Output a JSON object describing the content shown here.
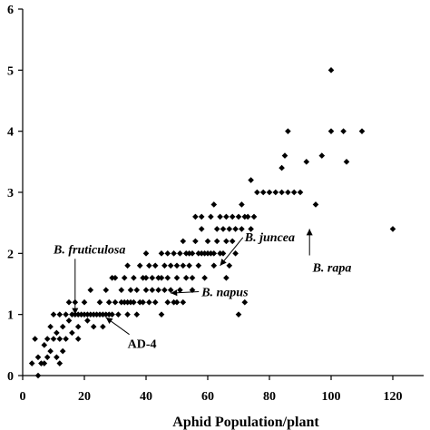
{
  "chart_data": {
    "type": "scatter",
    "title": "",
    "xlabel": "Aphid Population/plant",
    "ylabel": "",
    "xlim": [
      0,
      130
    ],
    "ylim": [
      0,
      6
    ],
    "grid": false,
    "x_ticks": [
      0,
      20,
      40,
      60,
      80,
      100,
      120
    ],
    "y_ticks": [
      0,
      1,
      2,
      3,
      4,
      5,
      6
    ],
    "x_tick_labels": [
      "0",
      "20",
      "40",
      "60",
      "80",
      "100",
      "120"
    ],
    "y_tick_labels": [
      "0",
      "1",
      "2",
      "3",
      "4",
      "5",
      "6"
    ],
    "points": [
      [
        3,
        0.2
      ],
      [
        4,
        0.6
      ],
      [
        5,
        0.3
      ],
      [
        6,
        0.2
      ],
      [
        7,
        0.5
      ],
      [
        7,
        0.2
      ],
      [
        8,
        0.6
      ],
      [
        8,
        0.3
      ],
      [
        9,
        0.8
      ],
      [
        9,
        0.4
      ],
      [
        10,
        1.0
      ],
      [
        10,
        0.6
      ],
      [
        11,
        0.7
      ],
      [
        11,
        0.3
      ],
      [
        12,
        1.0
      ],
      [
        12,
        0.6
      ],
      [
        13,
        0.8
      ],
      [
        13,
        0.4
      ],
      [
        14,
        0.6
      ],
      [
        14,
        1.0
      ],
      [
        15,
        0.9
      ],
      [
        15,
        1.2
      ],
      [
        16,
        1.0
      ],
      [
        16,
        0.7
      ],
      [
        17,
        1.0
      ],
      [
        17,
        1.2
      ],
      [
        18,
        0.8
      ],
      [
        18,
        1.0
      ],
      [
        19,
        1.0
      ],
      [
        20,
        1.0
      ],
      [
        20,
        1.2
      ],
      [
        21,
        1.0
      ],
      [
        21,
        0.9
      ],
      [
        22,
        1.0
      ],
      [
        23,
        1.0
      ],
      [
        23,
        0.8
      ],
      [
        24,
        1.0
      ],
      [
        25,
        1.0
      ],
      [
        25,
        1.2
      ],
      [
        26,
        1.0
      ],
      [
        27,
        1.0
      ],
      [
        27,
        1.4
      ],
      [
        28,
        1.0
      ],
      [
        28,
        1.2
      ],
      [
        29,
        1.0
      ],
      [
        30,
        1.2
      ],
      [
        30,
        1.6
      ],
      [
        31,
        1.0
      ],
      [
        32,
        1.2
      ],
      [
        32,
        1.4
      ],
      [
        33,
        1.2
      ],
      [
        33,
        1.6
      ],
      [
        34,
        1.2
      ],
      [
        34,
        1.0
      ],
      [
        35,
        1.4
      ],
      [
        35,
        1.2
      ],
      [
        36,
        1.2
      ],
      [
        36,
        1.6
      ],
      [
        37,
        1.0
      ],
      [
        37,
        1.4
      ],
      [
        38,
        1.2
      ],
      [
        38,
        1.8
      ],
      [
        39,
        1.6
      ],
      [
        39,
        1.2
      ],
      [
        40,
        1.4
      ],
      [
        40,
        1.6
      ],
      [
        41,
        1.2
      ],
      [
        41,
        1.8
      ],
      [
        42,
        1.4
      ],
      [
        42,
        1.6
      ],
      [
        43,
        1.8
      ],
      [
        43,
        1.2
      ],
      [
        44,
        1.6
      ],
      [
        44,
        1.4
      ],
      [
        45,
        2.0
      ],
      [
        45,
        1.6
      ],
      [
        46,
        1.4
      ],
      [
        46,
        1.8
      ],
      [
        47,
        1.6
      ],
      [
        47,
        2.0
      ],
      [
        48,
        1.4
      ],
      [
        48,
        1.8
      ],
      [
        49,
        2.0
      ],
      [
        49,
        1.2
      ],
      [
        50,
        1.6
      ],
      [
        50,
        1.8
      ],
      [
        51,
        2.0
      ],
      [
        51,
        1.4
      ],
      [
        52,
        1.8
      ],
      [
        52,
        1.2
      ],
      [
        53,
        1.6
      ],
      [
        53,
        2.0
      ],
      [
        54,
        2.0
      ],
      [
        54,
        1.8
      ],
      [
        55,
        2.0
      ],
      [
        55,
        1.6
      ],
      [
        56,
        2.2
      ],
      [
        57,
        2.0
      ],
      [
        57,
        1.8
      ],
      [
        58,
        2.0
      ],
      [
        58,
        2.4
      ],
      [
        59,
        2.0
      ],
      [
        59,
        1.6
      ],
      [
        60,
        2.0
      ],
      [
        60,
        2.2
      ],
      [
        61,
        2.0
      ],
      [
        61,
        2.6
      ],
      [
        62,
        2.0
      ],
      [
        62,
        1.8
      ],
      [
        63,
        2.2
      ],
      [
        63,
        2.4
      ],
      [
        64,
        2.0
      ],
      [
        64,
        2.6
      ],
      [
        65,
        2.4
      ],
      [
        65,
        2.0
      ],
      [
        66,
        2.2
      ],
      [
        66,
        2.6
      ],
      [
        67,
        2.4
      ],
      [
        67,
        1.8
      ],
      [
        68,
        2.6
      ],
      [
        68,
        2.2
      ],
      [
        69,
        2.4
      ],
      [
        69,
        2.0
      ],
      [
        70,
        2.6
      ],
      [
        70,
        1.0
      ],
      [
        71,
        2.4
      ],
      [
        71,
        2.8
      ],
      [
        72,
        2.6
      ],
      [
        73,
        2.6
      ],
      [
        74,
        2.4
      ],
      [
        74,
        3.2
      ],
      [
        75,
        2.6
      ],
      [
        76,
        3.0
      ],
      [
        78,
        3.0
      ],
      [
        80,
        3.0
      ],
      [
        82,
        3.0
      ],
      [
        84,
        3.0
      ],
      [
        84,
        3.4
      ],
      [
        85,
        3.6
      ],
      [
        86,
        3.0
      ],
      [
        86,
        4.0
      ],
      [
        88,
        3.0
      ],
      [
        90,
        3.0
      ],
      [
        92,
        3.5
      ],
      [
        95,
        2.8
      ],
      [
        97,
        3.6
      ],
      [
        100,
        5.0
      ],
      [
        100,
        4.0
      ],
      [
        104,
        4.0
      ],
      [
        105,
        3.5
      ],
      [
        110,
        4.0
      ],
      [
        120,
        2.4
      ],
      [
        72,
        1.2
      ],
      [
        66,
        1.6
      ],
      [
        55,
        1.4
      ],
      [
        50,
        1.2
      ],
      [
        45,
        1.0
      ],
      [
        26,
        0.8
      ],
      [
        22,
        1.4
      ],
      [
        18,
        0.6
      ],
      [
        12,
        0.2
      ],
      [
        5,
        0.0
      ],
      [
        29,
        1.6
      ],
      [
        34,
        1.8
      ],
      [
        40,
        2.0
      ],
      [
        56,
        2.6
      ],
      [
        62,
        2.8
      ],
      [
        58,
        2.6
      ],
      [
        52,
        2.2
      ],
      [
        47,
        1.2
      ]
    ],
    "annotations": [
      {
        "text": "B. fruticulosa",
        "italic": true,
        "target": [
          17,
          1.0
        ],
        "label_at": [
          10,
          2.0
        ]
      },
      {
        "text": "B. juncea",
        "italic": true,
        "target": [
          64,
          1.8
        ],
        "label_at": [
          72,
          2.2
        ]
      },
      {
        "text": "B. napus",
        "italic": true,
        "target": [
          48,
          1.35
        ],
        "label_at": [
          58,
          1.3
        ]
      },
      {
        "text": "AD-4",
        "italic": false,
        "target": [
          27,
          0.95
        ],
        "label_at": [
          34,
          0.45
        ]
      },
      {
        "text": "B. rapa",
        "italic": true,
        "target": [
          93,
          2.4
        ],
        "label_at": [
          94,
          1.7
        ]
      }
    ]
  }
}
